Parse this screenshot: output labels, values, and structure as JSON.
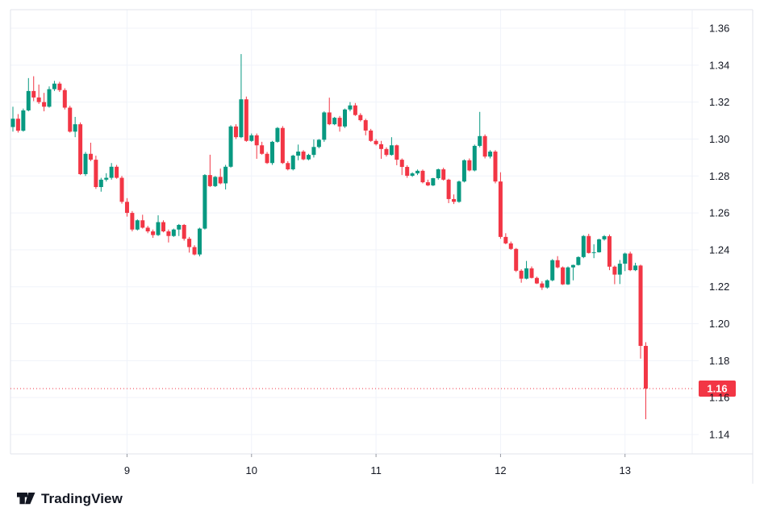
{
  "branding": {
    "logo_text": "TradingView"
  },
  "last_price": {
    "value": 1.1649,
    "label": "1.16"
  },
  "chart_data": {
    "type": "candlestick",
    "interval": "1 hour",
    "title": "",
    "grid": true,
    "y_axis": {
      "side": "right",
      "min": 1.14,
      "max": 1.36,
      "step": 0.02,
      "tick_labels": [
        "1.36",
        "1.34",
        "1.32",
        "1.30",
        "1.28",
        "1.26",
        "1.24",
        "1.22",
        "1.20",
        "1.18",
        "1.16",
        "1.14"
      ]
    },
    "x_axis": {
      "tick_labels": [
        "9",
        "10",
        "11",
        "12",
        "13"
      ],
      "tick_candle_indices": [
        22,
        46,
        70,
        94,
        118
      ]
    },
    "colors": {
      "up": "#089981",
      "down": "#f23645",
      "grid": "#f0f3fa",
      "border": "#e0e3eb",
      "axis_text": "#131722",
      "tick_mark": "#9598a1",
      "last_price": "#f23645",
      "last_price_text": "#ffffff"
    },
    "candles": [
      [
        1.3065,
        1.3175,
        1.304,
        1.311
      ],
      [
        1.311,
        1.3135,
        1.3035,
        1.3045
      ],
      [
        1.3045,
        1.3165,
        1.304,
        1.3155
      ],
      [
        1.3155,
        1.333,
        1.315,
        1.326
      ],
      [
        1.326,
        1.334,
        1.3205,
        1.3225
      ],
      [
        1.3225,
        1.3295,
        1.319,
        1.32
      ],
      [
        1.32,
        1.325,
        1.315,
        1.3175
      ],
      [
        1.3175,
        1.3285,
        1.317,
        1.327
      ],
      [
        1.327,
        1.3315,
        1.326,
        1.33
      ],
      [
        1.33,
        1.331,
        1.3255,
        1.3265
      ],
      [
        1.3265,
        1.3275,
        1.316,
        1.317
      ],
      [
        1.317,
        1.318,
        1.3035,
        1.304
      ],
      [
        1.304,
        1.312,
        1.301,
        1.308
      ],
      [
        1.308,
        1.309,
        1.2805,
        1.281
      ],
      [
        1.281,
        1.293,
        1.28,
        1.292
      ],
      [
        1.292,
        1.298,
        1.288,
        1.2888
      ],
      [
        1.2888,
        1.291,
        1.273,
        1.274
      ],
      [
        1.274,
        1.279,
        1.2715,
        1.278
      ],
      [
        1.278,
        1.2815,
        1.277,
        1.279
      ],
      [
        1.279,
        1.287,
        1.278,
        1.285
      ],
      [
        1.285,
        1.286,
        1.2785,
        1.279
      ],
      [
        1.279,
        1.28,
        1.265,
        1.266
      ],
      [
        1.266,
        1.268,
        1.258,
        1.26
      ],
      [
        1.26,
        1.261,
        1.25,
        1.251
      ],
      [
        1.251,
        1.2565,
        1.2505,
        1.256
      ],
      [
        1.256,
        1.259,
        1.2515,
        1.252
      ],
      [
        1.252,
        1.253,
        1.249,
        1.25
      ],
      [
        1.25,
        1.251,
        1.2465,
        1.248
      ],
      [
        1.248,
        1.2587,
        1.2475,
        1.255
      ],
      [
        1.255,
        1.256,
        1.2495,
        1.25
      ],
      [
        1.25,
        1.251,
        1.244,
        1.2475
      ],
      [
        1.2475,
        1.2515,
        1.247,
        1.251
      ],
      [
        1.251,
        1.254,
        1.2475,
        1.2535
      ],
      [
        1.2535,
        1.254,
        1.245,
        1.246
      ],
      [
        1.246,
        1.247,
        1.2385,
        1.2415
      ],
      [
        1.2415,
        1.2425,
        1.237,
        1.2375
      ],
      [
        1.2375,
        1.252,
        1.2365,
        1.2515
      ],
      [
        1.2515,
        1.281,
        1.251,
        1.2805
      ],
      [
        1.2805,
        1.2915,
        1.274,
        1.2745
      ],
      [
        1.2745,
        1.28,
        1.274,
        1.2795
      ],
      [
        1.2795,
        1.284,
        1.2755,
        1.276
      ],
      [
        1.276,
        1.286,
        1.2727,
        1.285
      ],
      [
        1.285,
        1.3075,
        1.2845,
        1.3068
      ],
      [
        1.3068,
        1.308,
        1.3,
        1.301
      ],
      [
        1.301,
        1.346,
        1.3005,
        1.3215
      ],
      [
        1.3215,
        1.323,
        1.2985,
        1.299
      ],
      [
        1.299,
        1.303,
        1.2985,
        1.302
      ],
      [
        1.302,
        1.303,
        1.2893,
        1.2966
      ],
      [
        1.2966,
        1.2985,
        1.2915,
        1.292
      ],
      [
        1.292,
        1.293,
        1.2865,
        1.287
      ],
      [
        1.287,
        1.299,
        1.286,
        1.2985
      ],
      [
        1.2985,
        1.3065,
        1.298,
        1.306
      ],
      [
        1.306,
        1.307,
        1.2865,
        1.287
      ],
      [
        1.287,
        1.288,
        1.283,
        1.2836
      ],
      [
        1.2836,
        1.2915,
        1.283,
        1.291
      ],
      [
        1.291,
        1.297,
        1.2885,
        1.2932
      ],
      [
        1.2932,
        1.294,
        1.2885,
        1.289
      ],
      [
        1.289,
        1.292,
        1.2885,
        1.2914
      ],
      [
        1.2914,
        1.2998,
        1.29,
        1.2957
      ],
      [
        1.2957,
        1.3,
        1.295,
        1.2996
      ],
      [
        1.2996,
        1.315,
        1.2985,
        1.3144
      ],
      [
        1.3144,
        1.3224,
        1.3075,
        1.308
      ],
      [
        1.308,
        1.312,
        1.3075,
        1.3115
      ],
      [
        1.3115,
        1.3125,
        1.304,
        1.3068
      ],
      [
        1.3068,
        1.3165,
        1.306,
        1.316
      ],
      [
        1.316,
        1.32,
        1.315,
        1.3182
      ],
      [
        1.3182,
        1.3195,
        1.3125,
        1.313
      ],
      [
        1.313,
        1.314,
        1.3095,
        1.3102
      ],
      [
        1.3102,
        1.311,
        1.302,
        1.3046
      ],
      [
        1.3046,
        1.3055,
        1.2985,
        1.299
      ],
      [
        1.299,
        1.3,
        1.2965,
        1.2972
      ],
      [
        1.2972,
        1.299,
        1.2893,
        1.2946
      ],
      [
        1.2946,
        1.2955,
        1.2905,
        1.2914
      ],
      [
        1.2914,
        1.301,
        1.291,
        1.2966
      ],
      [
        1.2966,
        1.297,
        1.2858,
        1.2888
      ],
      [
        1.2888,
        1.2895,
        1.2805,
        1.2849
      ],
      [
        1.2849,
        1.2858,
        1.279,
        1.2801
      ],
      [
        1.2801,
        1.282,
        1.2795,
        1.2814
      ],
      [
        1.2814,
        1.2835,
        1.2805,
        1.2828
      ],
      [
        1.2828,
        1.2835,
        1.276,
        1.2766
      ],
      [
        1.2766,
        1.278,
        1.2745,
        1.2749
      ],
      [
        1.2749,
        1.279,
        1.2745,
        1.2788
      ],
      [
        1.2788,
        1.284,
        1.278,
        1.2836
      ],
      [
        1.2836,
        1.2845,
        1.2775,
        1.278
      ],
      [
        1.278,
        1.2785,
        1.2653,
        1.2675
      ],
      [
        1.2675,
        1.27,
        1.2648,
        1.266
      ],
      [
        1.266,
        1.2775,
        1.2655,
        1.277
      ],
      [
        1.277,
        1.289,
        1.2765,
        1.2885
      ],
      [
        1.2885,
        1.2895,
        1.2825,
        1.283
      ],
      [
        1.283,
        1.297,
        1.2825,
        1.2963
      ],
      [
        1.2963,
        1.3147,
        1.2955,
        1.3016
      ],
      [
        1.3016,
        1.3025,
        1.2895,
        1.2905
      ],
      [
        1.2905,
        1.294,
        1.2895,
        1.2932
      ],
      [
        1.2932,
        1.294,
        1.276,
        1.277
      ],
      [
        1.277,
        1.282,
        1.246,
        1.247
      ],
      [
        1.247,
        1.249,
        1.243,
        1.2435
      ],
      [
        1.2435,
        1.2445,
        1.24,
        1.2405
      ],
      [
        1.2405,
        1.241,
        1.228,
        1.2287
      ],
      [
        1.2287,
        1.2295,
        1.2222,
        1.2244
      ],
      [
        1.2244,
        1.234,
        1.224,
        1.23
      ],
      [
        1.23,
        1.231,
        1.2245,
        1.2248
      ],
      [
        1.2248,
        1.2255,
        1.2215,
        1.2218
      ],
      [
        1.2218,
        1.223,
        1.2183,
        1.2196
      ],
      [
        1.2196,
        1.224,
        1.219,
        1.2235
      ],
      [
        1.2235,
        1.235,
        1.223,
        1.2344
      ],
      [
        1.2344,
        1.2366,
        1.23,
        1.2305
      ],
      [
        1.2305,
        1.231,
        1.221,
        1.2213
      ],
      [
        1.2213,
        1.231,
        1.221,
        1.2305
      ],
      [
        1.2305,
        1.232,
        1.2235,
        1.2318
      ],
      [
        1.2318,
        1.2365,
        1.2315,
        1.2361
      ],
      [
        1.2361,
        1.248,
        1.2355,
        1.2475
      ],
      [
        1.2475,
        1.2487,
        1.238,
        1.2383
      ],
      [
        1.2383,
        1.243,
        1.2355,
        1.2387
      ],
      [
        1.2387,
        1.246,
        1.2385,
        1.2457
      ],
      [
        1.2457,
        1.248,
        1.245,
        1.2474
      ],
      [
        1.2474,
        1.2483,
        1.229,
        1.2309
      ],
      [
        1.2309,
        1.2315,
        1.2214,
        1.2266
      ],
      [
        1.2266,
        1.2345,
        1.2215,
        1.2325
      ],
      [
        1.2325,
        1.2385,
        1.2285,
        1.238
      ],
      [
        1.238,
        1.239,
        1.2285,
        1.229
      ],
      [
        1.229,
        1.233,
        1.2285,
        1.2315
      ],
      [
        1.2315,
        1.232,
        1.1811,
        1.188
      ],
      [
        1.188,
        1.19,
        1.1483,
        1.1649
      ]
    ]
  }
}
